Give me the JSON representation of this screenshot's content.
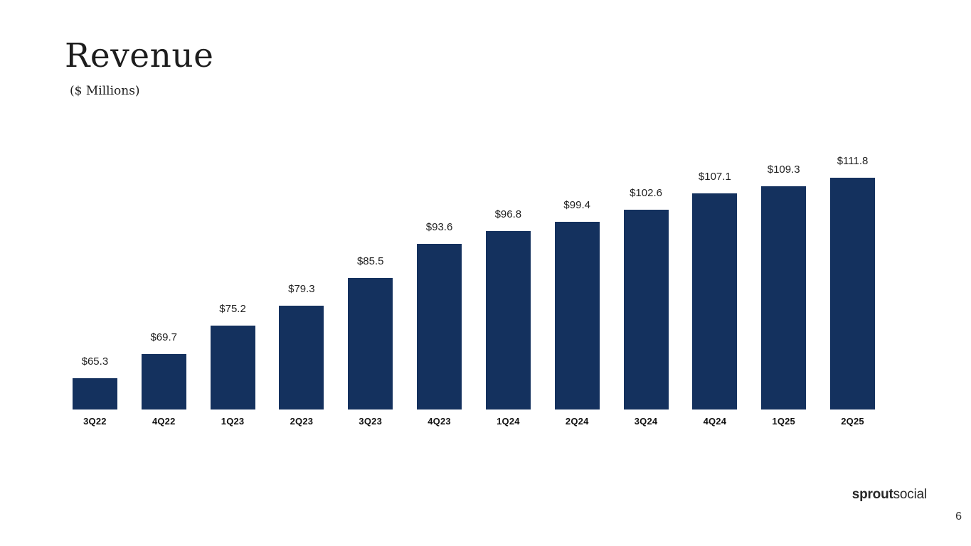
{
  "slide": {
    "title": "Revenue",
    "subtitle": "($ Millions)",
    "page_number": "6",
    "logo": {
      "bold": "sprout",
      "regular": "social"
    }
  },
  "chart_data": {
    "type": "bar",
    "title": "Revenue",
    "subtitle": "($ Millions)",
    "categories": [
      "3Q22",
      "4Q22",
      "1Q23",
      "2Q23",
      "3Q23",
      "4Q23",
      "1Q24",
      "2Q24",
      "3Q24",
      "4Q24",
      "1Q25",
      "2Q25"
    ],
    "values": [
      65.3,
      69.7,
      75.2,
      79.3,
      85.5,
      93.6,
      96.8,
      99.4,
      102.6,
      107.1,
      109.3,
      111.8
    ],
    "value_labels": [
      "$65.3",
      "$69.7",
      "$75.2",
      "$79.3",
      "$85.5",
      "$93.6",
      "$96.8",
      "$99.4",
      "$102.6",
      "$107.1",
      "$109.3",
      "$111.8"
    ],
    "bar_color": "#14315e",
    "value_label_color": "#212121",
    "category_label_color": "#111111",
    "layout": {
      "legend": false,
      "gridlines": false,
      "y_axis_visible": false,
      "value_labels_position": "above bars",
      "note": "bar heights drawn on an approximately logarithmic scale, baseline not zero"
    }
  }
}
